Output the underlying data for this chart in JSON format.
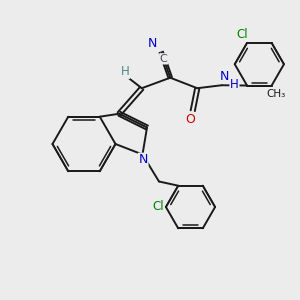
{
  "bg_color": "#ececec",
  "bond_color": "#1a1a1a",
  "N_color": "#0000cc",
  "O_color": "#cc0000",
  "Cl_color": "#008000",
  "C_color": "#4a4a5a",
  "H_color": "#4a8888",
  "figsize": [
    3.0,
    3.0
  ],
  "dpi": 100,
  "xlim": [
    0,
    10
  ],
  "ylim": [
    0,
    10
  ]
}
